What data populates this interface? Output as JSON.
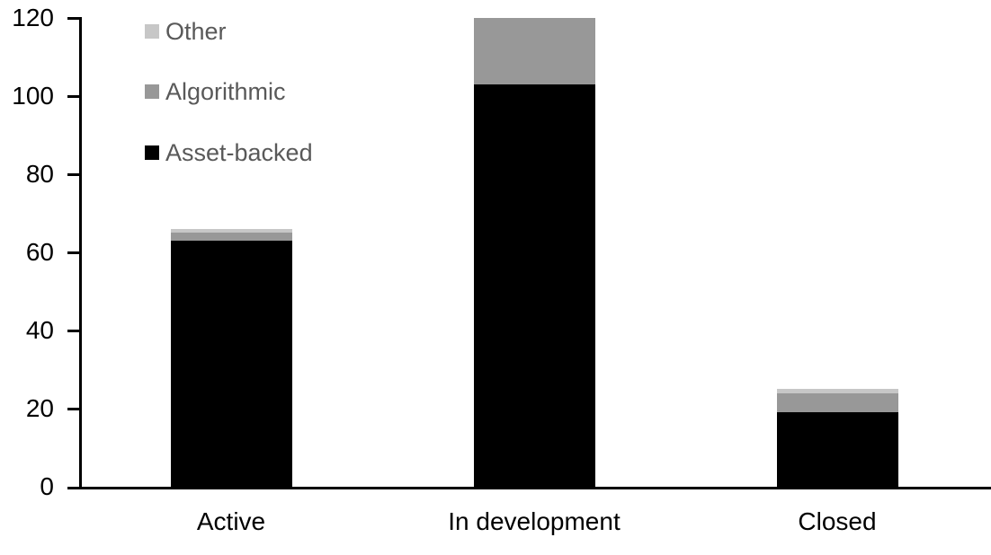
{
  "chart_data": {
    "type": "bar",
    "stacked": true,
    "title": "",
    "xlabel": "",
    "ylabel": "",
    "categories": [
      "Active",
      "In development",
      "Closed"
    ],
    "series": [
      {
        "name": "Asset-backed",
        "color": "#000000",
        "values": [
          63,
          103,
          19
        ]
      },
      {
        "name": "Algorithmic",
        "color": "#989898",
        "values": [
          2,
          17,
          5
        ]
      },
      {
        "name": "Other",
        "color": "#c7c7c7",
        "values": [
          1,
          0,
          1
        ]
      }
    ],
    "stack_totals": [
      66,
      120,
      25
    ],
    "ylim": [
      0,
      120
    ],
    "yticks": [
      0,
      20,
      40,
      60,
      80,
      100,
      120
    ],
    "grid": false,
    "legend": {
      "position": "top-left",
      "order": [
        "Other",
        "Algorithmic",
        "Asset-backed"
      ],
      "text_color": "#595959"
    }
  },
  "colors": {
    "background": "#ffffff",
    "axis": "#000000",
    "tick_label": "#000000"
  }
}
